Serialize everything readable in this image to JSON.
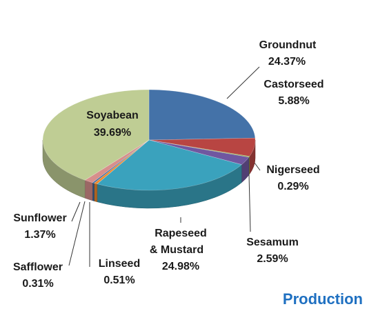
{
  "chart_data": {
    "type": "pie",
    "title": "Production",
    "title_color": "#1f70c1",
    "slices": [
      {
        "name": "Groundnut",
        "value": 24.37,
        "label": "24.37%",
        "color": "#4472a8"
      },
      {
        "name": "Castorseed",
        "value": 5.88,
        "label": "5.88%",
        "color": "#b84542"
      },
      {
        "name": "Nigerseed",
        "value": 0.29,
        "label": "0.29%",
        "color": "#8eae4a"
      },
      {
        "name": "Sesamum",
        "value": 2.59,
        "label": "2.59%",
        "color": "#7057a0"
      },
      {
        "name": "Rapeseed & Mustard",
        "value": 24.98,
        "label": "24.98%",
        "color": "#3aa2bd"
      },
      {
        "name": "Linseed",
        "value": 0.51,
        "label": "0.51%",
        "color": "#ee8a2e"
      },
      {
        "name": "Safflower",
        "value": 0.31,
        "label": "0.31%",
        "color": "#3c6aa0"
      },
      {
        "name": "Sunflower",
        "value": 1.37,
        "label": "1.37%",
        "color": "#d78f8c"
      },
      {
        "name": "Soyabean",
        "value": 39.69,
        "label": "39.69%",
        "color": "#bfcd94"
      }
    ]
  }
}
